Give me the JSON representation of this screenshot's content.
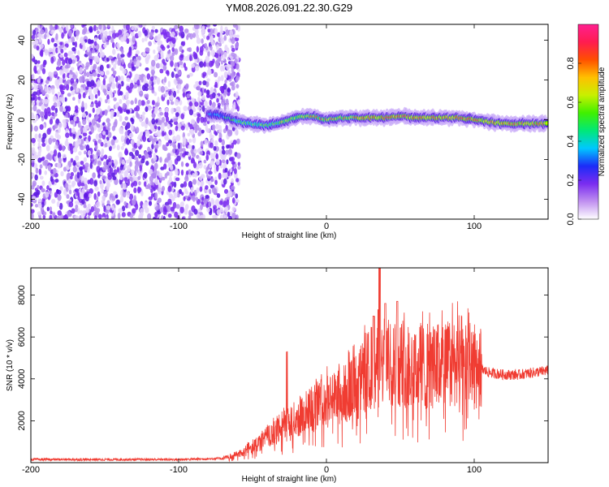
{
  "figure_title": "YM08.2026.091.22.30.G29",
  "chart_data": [
    {
      "type": "heatmap",
      "xlabel": "Height of straight line (km)",
      "ylabel": "Frequency (Hz)",
      "xlim": [
        -200,
        150
      ],
      "ylim": [
        -50,
        48
      ],
      "x_ticks": [
        -200,
        -100,
        0,
        100
      ],
      "y_ticks": [
        -40,
        -20,
        0,
        20,
        40
      ],
      "colorbar": {
        "label": "Normalized spectral amplitude",
        "range": [
          0.0,
          1.0
        ],
        "ticks": [
          0.0,
          0.2,
          0.4,
          0.6,
          0.8
        ],
        "colors": [
          "#ffffff",
          "#c090f0",
          "#7a2cf0",
          "#1c2cf8",
          "#00c8ff",
          "#00e878",
          "#40f000",
          "#c8f000",
          "#ffc000",
          "#ff5000",
          "#ff1c50",
          "#ff2090"
        ]
      },
      "noise_region_x": [
        -200,
        -63
      ],
      "ridge": [
        {
          "x": -80,
          "y": 3,
          "amp": 0.4
        },
        {
          "x": -70,
          "y": 2,
          "amp": 0.5
        },
        {
          "x": -60,
          "y": -1,
          "amp": 0.6
        },
        {
          "x": -50,
          "y": -2,
          "amp": 0.65
        },
        {
          "x": -40,
          "y": -3,
          "amp": 0.7
        },
        {
          "x": -30,
          "y": -1,
          "amp": 0.75
        },
        {
          "x": -20,
          "y": 1,
          "amp": 0.8
        },
        {
          "x": -10,
          "y": 2,
          "amp": 0.85
        },
        {
          "x": 0,
          "y": 0,
          "amp": 0.9
        },
        {
          "x": 10,
          "y": 1,
          "amp": 0.9
        },
        {
          "x": 20,
          "y": 1,
          "amp": 0.9
        },
        {
          "x": 30,
          "y": 1,
          "amp": 0.95
        },
        {
          "x": 40,
          "y": 1,
          "amp": 0.95
        },
        {
          "x": 50,
          "y": 2,
          "amp": 0.95
        },
        {
          "x": 60,
          "y": 1,
          "amp": 0.95
        },
        {
          "x": 70,
          "y": 1,
          "amp": 0.95
        },
        {
          "x": 80,
          "y": 1,
          "amp": 0.95
        },
        {
          "x": 90,
          "y": 1,
          "amp": 0.95
        },
        {
          "x": 100,
          "y": 0,
          "amp": 0.95
        },
        {
          "x": 110,
          "y": -1,
          "amp": 0.95
        },
        {
          "x": 120,
          "y": -2,
          "amp": 0.95
        },
        {
          "x": 130,
          "y": -2,
          "amp": 0.95
        },
        {
          "x": 140,
          "y": -2,
          "amp": 0.95
        },
        {
          "x": 150,
          "y": -2,
          "amp": 0.95
        }
      ]
    },
    {
      "type": "line",
      "xlabel": "Height of straight line (km)",
      "ylabel": "SNR (10 * v/v)",
      "xlim": [
        -200,
        150
      ],
      "ylim": [
        0,
        9300
      ],
      "x_ticks": [
        -200,
        -100,
        0,
        100
      ],
      "y_ticks": [
        2000,
        4000,
        6000,
        8000
      ],
      "series_color": "#f03c32",
      "envelope": {
        "x": [
          -200,
          -150,
          -100,
          -70,
          -60,
          -50,
          -40,
          -30,
          -20,
          -10,
          0,
          10,
          20,
          25,
          30,
          40,
          50,
          60,
          70,
          80,
          90,
          100,
          110,
          120,
          130,
          140,
          150
        ],
        "y": [
          150,
          150,
          150,
          200,
          400,
          700,
          1200,
          1600,
          2100,
          2600,
          2900,
          3200,
          3600,
          4100,
          4500,
          4800,
          4800,
          4600,
          4500,
          4700,
          4900,
          4600,
          4300,
          4200,
          4200,
          4300,
          4400
        ]
      },
      "spikes": [
        {
          "x": -27,
          "y": 5300
        },
        {
          "x": 36,
          "y": 9300
        },
        {
          "x": 48,
          "y": 7700
        },
        {
          "x": 40,
          "y": 7600
        },
        {
          "x": 32,
          "y": 7000
        }
      ]
    }
  ]
}
